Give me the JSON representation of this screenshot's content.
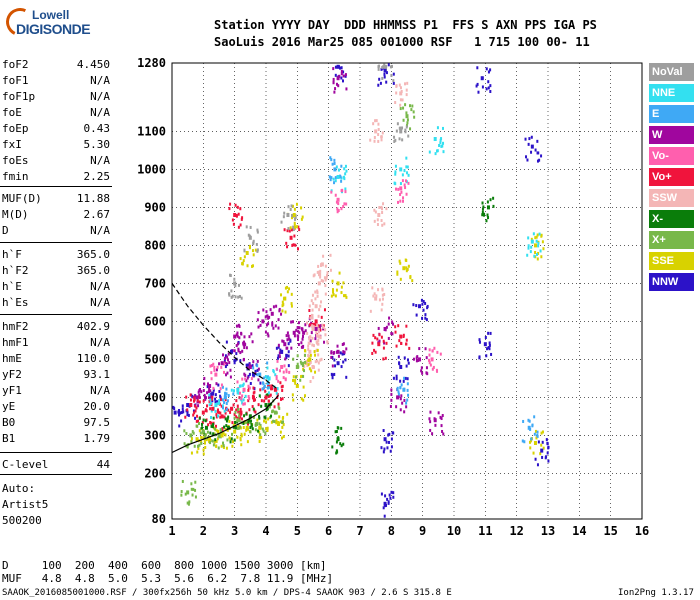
{
  "logo": {
    "top": "Lowell",
    "bottom": "DIGISONDE"
  },
  "header": {
    "line1": "Station YYYY DAY  DDD HHMMSS P1  FFS S AXN PPS IGA PS",
    "line2": "SaoLuis 2016 Mar25 085 001000 RSF   1 715 100 00- 11"
  },
  "params": [
    {
      "k": "foF2",
      "v": "4.450"
    },
    {
      "k": "foF1",
      "v": "N/A"
    },
    {
      "k": "foF1p",
      "v": "N/A"
    },
    {
      "k": "foE",
      "v": "N/A"
    },
    {
      "k": "foEp",
      "v": "0.43"
    },
    {
      "k": "fxI",
      "v": "5.30"
    },
    {
      "k": "foEs",
      "v": "N/A"
    },
    {
      "k": "fmin",
      "v": "2.25"
    },
    {
      "k": "MUF(D)",
      "v": "11.88"
    },
    {
      "k": "M(D)",
      "v": "2.67"
    },
    {
      "k": "D",
      "v": "N/A"
    },
    {
      "k": "h`F",
      "v": "365.0"
    },
    {
      "k": "h`F2",
      "v": "365.0"
    },
    {
      "k": "h`E",
      "v": "N/A"
    },
    {
      "k": "h`Es",
      "v": "N/A"
    },
    {
      "k": "hmF2",
      "v": "402.9"
    },
    {
      "k": "hmF1",
      "v": "N/A"
    },
    {
      "k": "hmE",
      "v": "110.0"
    },
    {
      "k": "yF2",
      "v": "93.1"
    },
    {
      "k": "yF1",
      "v": "N/A"
    },
    {
      "k": "yE",
      "v": "20.0"
    },
    {
      "k": "B0",
      "v": "97.5"
    },
    {
      "k": "B1",
      "v": "1.79"
    },
    {
      "k": "C-level",
      "v": "44"
    }
  ],
  "auto": {
    "l1": "Auto:",
    "l2": "Artist5",
    "l3": "500200"
  },
  "legend": [
    {
      "label": "NoVal",
      "color": "#9e9e9e"
    },
    {
      "label": "NNE",
      "color": "#33e0f0"
    },
    {
      "label": "E",
      "color": "#3fa9f5"
    },
    {
      "label": "W",
      "color": "#a0069e"
    },
    {
      "label": "Vo-",
      "color": "#ff5fae"
    },
    {
      "label": "Vo+",
      "color": "#f0143c"
    },
    {
      "label": "SSW",
      "color": "#f4b6b6"
    },
    {
      "label": "X-",
      "color": "#0a7d0a"
    },
    {
      "label": "X+",
      "color": "#78b84a"
    },
    {
      "label": "SSE",
      "color": "#d8d200"
    },
    {
      "label": "NNW",
      "color": "#2c12c8"
    }
  ],
  "bottom": {
    "d_line": "D     100  200  400  600  800 1000 1500 3000 [km]",
    "muf_line": "MUF   4.8  4.8  5.0  5.3  5.6  6.2  7.8 11.9 [MHz]"
  },
  "footer": {
    "left": "SAAOK_2016085001000.RSF / 300fx256h 50 kHz 5.0 km / DPS-4 SAAOK 903 / 2.6 S 315.8 E",
    "right": "Ion2Png 1.3.17"
  },
  "chart_data": {
    "type": "scatter",
    "xlabel": "",
    "ylabel": "",
    "xlim": [
      1,
      16
    ],
    "ylim": [
      80,
      1280
    ],
    "xticks": [
      1,
      2,
      3,
      4,
      5,
      6,
      7,
      8,
      9,
      10,
      11,
      12,
      13,
      14,
      15,
      16
    ],
    "yticks": [
      80,
      200,
      300,
      400,
      500,
      600,
      700,
      800,
      900,
      1000,
      1100,
      1280
    ],
    "series": [
      {
        "name": "NNW",
        "points": [
          [
            1.1,
            360
          ],
          [
            1.5,
            380
          ],
          [
            2.3,
            410
          ],
          [
            2.9,
            520
          ],
          [
            3.6,
            460
          ],
          [
            4.5,
            520
          ],
          [
            6.3,
            1270
          ],
          [
            6.3,
            490
          ],
          [
            7.8,
            1260
          ],
          [
            7.8,
            120
          ],
          [
            7.8,
            290
          ],
          [
            8.3,
            480
          ],
          [
            8.9,
            640
          ],
          [
            10.9,
            1240
          ],
          [
            11.0,
            540
          ],
          [
            12.5,
            1060
          ],
          [
            12.8,
            260
          ]
        ]
      },
      {
        "name": "W",
        "points": [
          [
            1.8,
            400
          ],
          [
            2.2,
            430
          ],
          [
            2.6,
            490
          ],
          [
            3.0,
            560
          ],
          [
            3.3,
            540
          ],
          [
            3.5,
            480
          ],
          [
            3.9,
            600
          ],
          [
            4.2,
            620
          ],
          [
            4.6,
            540
          ],
          [
            4.9,
            570
          ],
          [
            5.2,
            570
          ],
          [
            5.6,
            580
          ],
          [
            6.3,
            1240
          ],
          [
            6.3,
            520
          ],
          [
            7.8,
            580
          ],
          [
            8.2,
            400
          ],
          [
            8.9,
            500
          ],
          [
            9.4,
            340
          ]
        ]
      },
      {
        "name": "Vo+",
        "points": [
          [
            1.6,
            380
          ],
          [
            2.0,
            360
          ],
          [
            2.3,
            370
          ],
          [
            2.6,
            350
          ],
          [
            2.9,
            370
          ],
          [
            3.2,
            360
          ],
          [
            3.6,
            400
          ],
          [
            4.0,
            400
          ],
          [
            4.3,
            420
          ],
          [
            3.0,
            880
          ],
          [
            4.8,
            820
          ],
          [
            5.6,
            600
          ],
          [
            7.6,
            540
          ],
          [
            8.3,
            560
          ]
        ]
      },
      {
        "name": "SSW",
        "points": [
          [
            5.4,
            520
          ],
          [
            5.5,
            580
          ],
          [
            5.6,
            640
          ],
          [
            5.7,
            700
          ],
          [
            5.8,
            750
          ],
          [
            5.5,
            480
          ],
          [
            5.7,
            560
          ],
          [
            7.5,
            1100
          ],
          [
            7.6,
            880
          ],
          [
            8.3,
            1200
          ],
          [
            7.5,
            660
          ]
        ]
      },
      {
        "name": "SSE",
        "points": [
          [
            1.8,
            290
          ],
          [
            2.2,
            290
          ],
          [
            2.6,
            300
          ],
          [
            3.0,
            310
          ],
          [
            3.4,
            320
          ],
          [
            3.8,
            320
          ],
          [
            4.4,
            330
          ],
          [
            5.0,
            430
          ],
          [
            5.4,
            500
          ],
          [
            4.6,
            660
          ],
          [
            3.4,
            780
          ],
          [
            4.9,
            880
          ],
          [
            6.3,
            700
          ],
          [
            8.4,
            740
          ],
          [
            12.6,
            800
          ],
          [
            12.6,
            280
          ]
        ]
      },
      {
        "name": "X+",
        "points": [
          [
            1.6,
            300
          ],
          [
            2.0,
            310
          ],
          [
            2.5,
            300
          ],
          [
            3.1,
            340
          ],
          [
            3.7,
            330
          ],
          [
            4.3,
            360
          ],
          [
            5.0,
            480
          ],
          [
            1.5,
            150
          ],
          [
            8.5,
            1140
          ]
        ]
      },
      {
        "name": "X-",
        "points": [
          [
            2.1,
            320
          ],
          [
            2.8,
            320
          ],
          [
            3.5,
            350
          ],
          [
            4.0,
            380
          ],
          [
            6.3,
            290
          ],
          [
            11.1,
            900
          ]
        ]
      },
      {
        "name": "NNE",
        "points": [
          [
            2.4,
            380
          ],
          [
            3.1,
            420
          ],
          [
            4.1,
            450
          ],
          [
            6.3,
            980
          ],
          [
            8.3,
            1000
          ],
          [
            9.4,
            1080
          ],
          [
            12.5,
            810
          ]
        ]
      },
      {
        "name": "E",
        "points": [
          [
            2.7,
            400
          ],
          [
            3.8,
            460
          ],
          [
            6.2,
            1000
          ],
          [
            8.4,
            420
          ],
          [
            12.4,
            320
          ]
        ]
      },
      {
        "name": "Vo-",
        "points": [
          [
            2.4,
            460
          ],
          [
            3.3,
            420
          ],
          [
            4.5,
            480
          ],
          [
            6.3,
            920
          ],
          [
            8.3,
            950
          ],
          [
            9.3,
            500
          ]
        ]
      },
      {
        "name": "NoVal",
        "points": [
          [
            3.0,
            700
          ],
          [
            3.5,
            820
          ],
          [
            4.7,
            880
          ],
          [
            7.8,
            1270
          ],
          [
            8.3,
            1100
          ]
        ]
      }
    ]
  }
}
